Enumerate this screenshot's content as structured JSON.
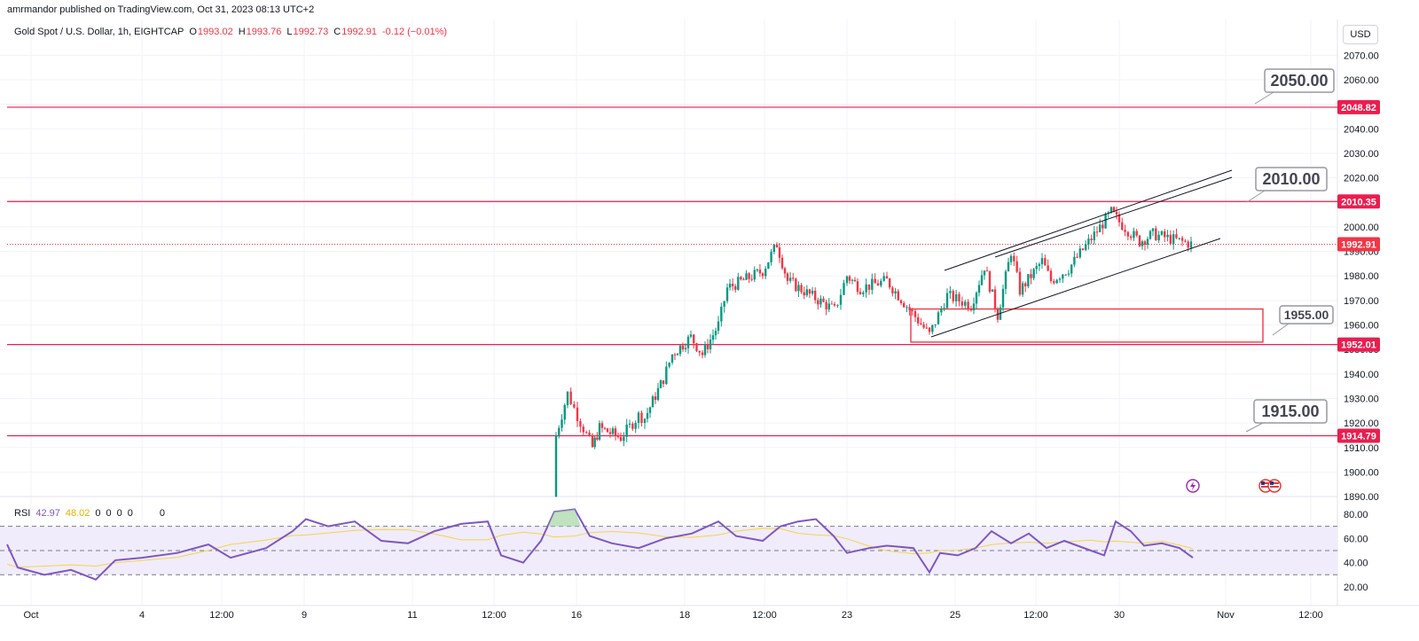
{
  "header": {
    "publisher": "amrmandor published on TradingView.com, Oct 31, 2023 08:13 UTC+2"
  },
  "legend": {
    "symbol": "Gold Spot / U.S. Dollar, 1h, EIGHTCAP",
    "open_key": "O",
    "open": "1993.02",
    "high_key": "H",
    "high": "1993.76",
    "low_key": "L",
    "low": "1992.73",
    "close_key": "C",
    "close": "1992.91",
    "change": "-0.12 (−0.01%)"
  },
  "rsi_legend": {
    "name": "RSI",
    "value": "42.97",
    "ma": "48.02",
    "zeros": [
      "0",
      "0",
      "0",
      "0",
      "0"
    ]
  },
  "currency_button": "USD",
  "price_axis": {
    "ticks": [
      "2070.00",
      "2060.00",
      "2050.00",
      "2040.00",
      "2030.00",
      "2020.00",
      "2010.00",
      "2000.00",
      "1990.00",
      "1980.00",
      "1970.00",
      "1960.00",
      "1950.00",
      "1940.00",
      "1930.00",
      "1920.00",
      "1910.00",
      "1900.00",
      "1890.00"
    ],
    "tags": [
      {
        "label": "2048.82",
        "price": 2048.82,
        "color": "#e91e4f"
      },
      {
        "label": "2010.35",
        "price": 2010.35,
        "color": "#e91e4f"
      },
      {
        "label": "1992.91",
        "price": 1992.91,
        "color": "#f23645"
      },
      {
        "label": "1952.01",
        "price": 1952.01,
        "color": "#e91e4f"
      },
      {
        "label": "1914.79",
        "price": 1914.79,
        "color": "#e91e4f"
      }
    ]
  },
  "rsi_axis": {
    "ticks": [
      "80.00",
      "60.00",
      "40.00",
      "20.00"
    ]
  },
  "time_axis": {
    "ticks": [
      "Oct",
      "4",
      "12:00",
      "9",
      "11",
      "12:00",
      "16",
      "18",
      "12:00",
      "23",
      "25",
      "12:00",
      "30",
      "Nov",
      "12:00"
    ]
  },
  "callouts": [
    {
      "label": "2050.00",
      "price": 2048.82,
      "size": "large"
    },
    {
      "label": "2010.00",
      "price": 2010.35,
      "size": "large"
    },
    {
      "label": "1955.00",
      "price": 1952.01,
      "size": "small"
    },
    {
      "label": "1915.00",
      "price": 1914.79,
      "size": "large"
    }
  ],
  "colors": {
    "up": "#089981",
    "down": "#f23645",
    "level_line": "#f23645",
    "rsi_line": "#7e57c2",
    "rsi_ma": "#f5d44a",
    "rsi_band": "#f0ecfb"
  },
  "icons": [
    "flash-icon",
    "us-flag-event-icon"
  ],
  "chart_data": {
    "type": "candlestick",
    "symbol": "XAUUSD",
    "interval": "1h",
    "ylim": [
      1887,
      2076
    ],
    "last_price": 1992.91,
    "horizontal_levels": [
      2048.82,
      2010.35,
      1952.01,
      1914.79
    ],
    "channel_lines": [
      {
        "from": {
          "x": "Oct 24",
          "y": 1985
        },
        "to": {
          "x": "Oct 31",
          "y": 2022
        }
      },
      {
        "from": {
          "x": "Oct 26",
          "y": 1986
        },
        "to": {
          "x": "Oct 31",
          "y": 2020
        }
      },
      {
        "from": {
          "x": "Oct 24",
          "y": 1954
        },
        "to": {
          "x": "Oct 31",
          "y": 1994
        }
      }
    ],
    "rectangle": {
      "y_top": 1966.5,
      "y_bottom": 1953
    },
    "close_path": [
      {
        "x": "Oct 13",
        "y": 1890
      },
      {
        "x": "Oct 13",
        "y": 1915
      },
      {
        "x": "Oct 13",
        "y": 1932
      },
      {
        "x": "Oct 16",
        "y": 1923
      },
      {
        "x": "Oct 16",
        "y": 1910
      },
      {
        "x": "Oct 16",
        "y": 1918
      },
      {
        "x": "Oct 17",
        "y": 1914
      },
      {
        "x": "Oct 17",
        "y": 1923
      },
      {
        "x": "Oct 17",
        "y": 1922
      },
      {
        "x": "Oct 18",
        "y": 1938
      },
      {
        "x": "Oct 18",
        "y": 1948
      },
      {
        "x": "Oct 18",
        "y": 1955
      },
      {
        "x": "Oct 19",
        "y": 1948
      },
      {
        "x": "Oct 19",
        "y": 1960
      },
      {
        "x": "Oct 19",
        "y": 1975
      },
      {
        "x": "Oct 20",
        "y": 1982
      },
      {
        "x": "Oct 20",
        "y": 1993
      },
      {
        "x": "Oct 20",
        "y": 1978
      },
      {
        "x": "Oct 23",
        "y": 1966
      },
      {
        "x": "Oct 23",
        "y": 1980
      },
      {
        "x": "Oct 23",
        "y": 1975
      },
      {
        "x": "Oct 24",
        "y": 1978
      },
      {
        "x": "Oct 24",
        "y": 1956
      },
      {
        "x": "Oct 24",
        "y": 1972
      },
      {
        "x": "Oct 25",
        "y": 1968
      },
      {
        "x": "Oct 25",
        "y": 1984
      },
      {
        "x": "Oct 26",
        "y": 1964
      },
      {
        "x": "Oct 26",
        "y": 1990
      },
      {
        "x": "Oct 26",
        "y": 1974
      },
      {
        "x": "Oct 27",
        "y": 1986
      },
      {
        "x": "Oct 27",
        "y": 1978
      },
      {
        "x": "Oct 27",
        "y": 1983
      },
      {
        "x": "Oct 30",
        "y": 2006
      },
      {
        "x": "Oct 30",
        "y": 2002
      },
      {
        "x": "Oct 30",
        "y": 1994
      },
      {
        "x": "Oct 30",
        "y": 1997
      },
      {
        "x": "Oct 31",
        "y": 1993
      }
    ],
    "rsi": {
      "ylim": [
        10,
        90
      ],
      "bands": [
        70,
        50,
        30
      ],
      "last": 42.97,
      "ma_last": 48.02
    }
  }
}
